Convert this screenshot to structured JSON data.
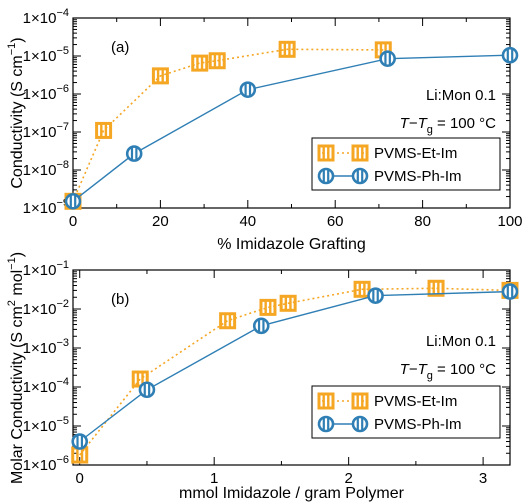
{
  "colors": {
    "et": "#f5a623",
    "ph": "#2f7fb5",
    "et_dark": "#e8901a",
    "ph_dark": "#1f5f8a"
  },
  "chart_data": [
    {
      "type": "line",
      "panel_label": "(a)",
      "xlabel": "% Imidazole Grafting",
      "ylabel": "Conductivity (S cm",
      "ylabel_unit_exp": "−1",
      "ylabel_close": ")",
      "xlim": [
        0,
        100
      ],
      "ylim_log10": [
        -9,
        -4
      ],
      "y_scale": "log",
      "x_ticks": [
        0,
        20,
        40,
        60,
        80,
        100
      ],
      "x_tick_labels": [
        "0",
        "20",
        "40",
        "60",
        "80",
        "100"
      ],
      "y_ticks_log10": [
        -9,
        -8,
        -7,
        -6,
        -5,
        -4
      ],
      "y_tick_labels": [
        "1×10",
        "1×10",
        "1×10",
        "1×10",
        "1×10",
        "1×10"
      ],
      "y_tick_exps": [
        "−9",
        "−8",
        "−7",
        "−6",
        "−5",
        "−4"
      ],
      "annotation_1": "Li:Mon 0.1",
      "annotation_2": {
        "T": "T",
        "dash": "−",
        "Tg": "T",
        "sub": "g",
        "rest": " = 100 °C"
      },
      "legend_position": "center-right",
      "series": [
        {
          "name": "PVMS-Et-Im",
          "style": "dotted",
          "marker": "square",
          "x": [
            0,
            7,
            20,
            29,
            33,
            49,
            71
          ],
          "y": [
            1.5e-09,
            1.1e-07,
            3e-06,
            6.5e-06,
            7.5e-06,
            1.5e-05,
            1.45e-05
          ]
        },
        {
          "name": "PVMS-Ph-Im",
          "style": "solid",
          "marker": "circle",
          "x": [
            0,
            14,
            40,
            72,
            100
          ],
          "y": [
            1.5e-09,
            2.7e-08,
            1.3e-06,
            8.5e-06,
            1.05e-05
          ]
        }
      ]
    },
    {
      "type": "line",
      "panel_label": "(b)",
      "xlabel": "mmol Imidazole / gram Polymer",
      "ylabel": "Molar Conductivity (S cm",
      "ylabel_unit_exp1": "2",
      "ylabel_mid": " mol",
      "ylabel_unit_exp2": "−1",
      "ylabel_close": ")",
      "xlim": [
        -0.05,
        3.2
      ],
      "ylim_log10": [
        -6,
        -1
      ],
      "y_scale": "log",
      "x_ticks": [
        0,
        1,
        2,
        3
      ],
      "x_tick_labels": [
        "0",
        "1",
        "2",
        "3"
      ],
      "y_ticks_log10": [
        -6,
        -5,
        -4,
        -3,
        -2,
        -1
      ],
      "y_tick_labels": [
        "1×10",
        "1×10",
        "1×10",
        "1×10",
        "1×10",
        "1×10"
      ],
      "y_tick_exps": [
        "−6",
        "−5",
        "−4",
        "−3",
        "−2",
        "−1"
      ],
      "annotation_1": "Li:Mon 0.1",
      "annotation_2": {
        "T": "T",
        "dash": "−",
        "Tg": "T",
        "sub": "g",
        "rest": " = 100 °C"
      },
      "legend_position": "center-right",
      "series": [
        {
          "name": "PVMS-Et-Im",
          "style": "dotted",
          "marker": "square",
          "x": [
            0,
            0.45,
            1.1,
            1.4,
            1.55,
            2.1,
            2.65,
            3.2
          ],
          "y": [
            1.8e-06,
            0.00016,
            0.005,
            0.011,
            0.014,
            0.032,
            0.034,
            0.03
          ]
        },
        {
          "name": "PVMS-Ph-Im",
          "style": "solid",
          "marker": "circle",
          "x": [
            0,
            0.5,
            1.35,
            2.2,
            3.2
          ],
          "y": [
            4e-06,
            8.5e-05,
            0.0037,
            0.022,
            0.028
          ]
        }
      ]
    }
  ]
}
